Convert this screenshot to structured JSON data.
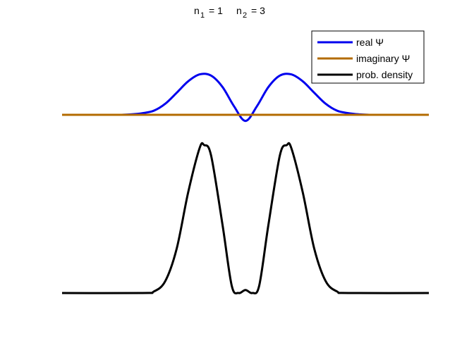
{
  "chart_data": {
    "type": "line",
    "title": {
      "n1_label": "n",
      "n1_sub": "1",
      "n1_value": "=  1",
      "n2_label": "n",
      "n2_sub": "2",
      "n2_value": "=  3"
    },
    "xlabel": "",
    "ylabel": "",
    "xlim": [
      -4,
      4
    ],
    "axes_visible": false,
    "grid": false,
    "legend_position": "top-right",
    "series": [
      {
        "name": "real Ψ",
        "color": "#0000ee",
        "offset": 0,
        "x": [
          -2.7,
          -2.5,
          -2.25,
          -2.0,
          -1.75,
          -1.5,
          -1.25,
          -1.0,
          -0.75,
          -0.5,
          -0.25,
          0.0,
          0.25,
          0.5,
          0.75,
          1.0,
          1.25,
          1.5,
          1.75,
          2.0,
          2.25,
          2.5,
          2.7
        ],
        "y": [
          0.0,
          0.01,
          0.04,
          0.1,
          0.27,
          0.54,
          0.82,
          0.99,
          0.96,
          0.68,
          0.21,
          -0.15,
          0.21,
          0.68,
          0.96,
          0.99,
          0.82,
          0.54,
          0.27,
          0.1,
          0.04,
          0.01,
          0.0
        ]
      },
      {
        "name": "imaginary Ψ",
        "color": "#b36b00",
        "offset": 0,
        "x": [
          -4.0,
          4.0
        ],
        "y": [
          0.0,
          0.0
        ]
      },
      {
        "name": "prob. density",
        "color": "#000000",
        "offset": -4.3,
        "x": [
          -4.0,
          -2.25,
          -2.0,
          -1.75,
          -1.5,
          -1.25,
          -1.0,
          -0.9,
          -0.75,
          -0.5,
          -0.3,
          -0.15,
          0.0,
          0.15,
          0.3,
          0.5,
          0.75,
          0.9,
          1.0,
          1.25,
          1.5,
          1.75,
          2.0,
          2.25,
          4.0
        ],
        "y": [
          0.0,
          0.0,
          0.01,
          0.08,
          0.3,
          0.68,
          0.98,
          1.0,
          0.93,
          0.46,
          0.05,
          0.0,
          0.02,
          0.0,
          0.05,
          0.46,
          0.93,
          1.0,
          0.98,
          0.68,
          0.3,
          0.08,
          0.01,
          0.0,
          0.0
        ],
        "scale": 3.55
      }
    ]
  },
  "legend": {
    "items": [
      {
        "label": "real Ψ",
        "color": "#0000ee"
      },
      {
        "label": "imaginary Ψ",
        "color": "#b36b00"
      },
      {
        "label": "prob. density",
        "color": "#000000"
      }
    ]
  }
}
